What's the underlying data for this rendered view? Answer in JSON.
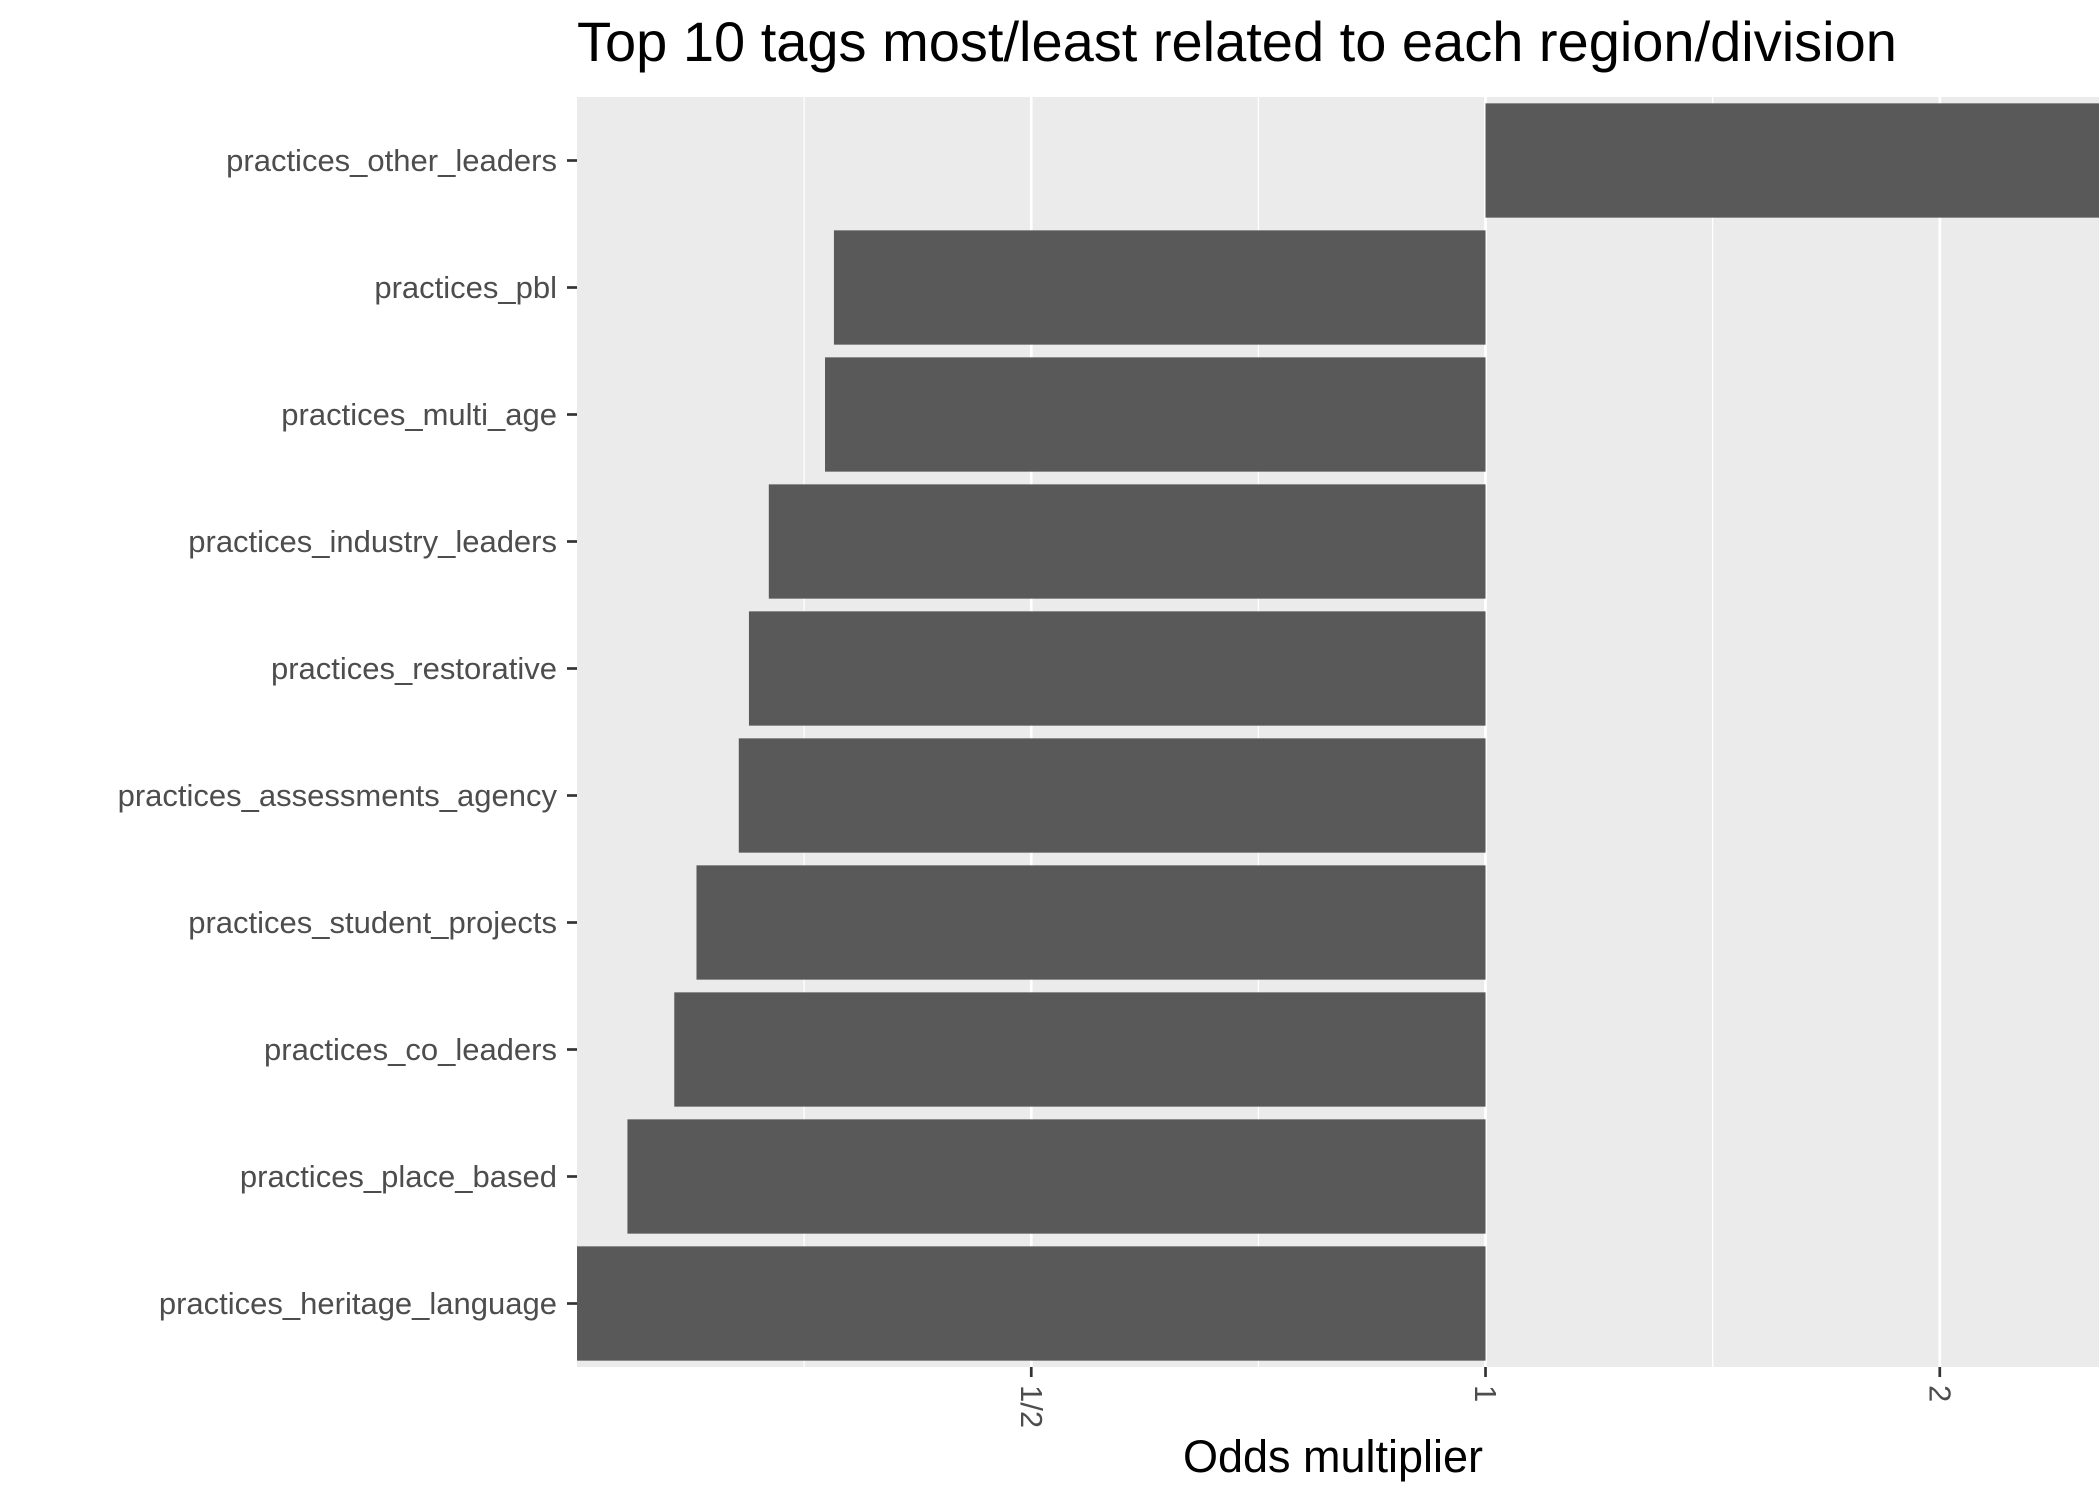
{
  "chart_data": {
    "type": "bar",
    "orientation": "horizontal",
    "title": "Top 10 tags most/least related to each region/division",
    "xlabel": "Odds multiplier",
    "ylabel": "",
    "x_scale": "log2",
    "x_ticks": [
      {
        "value": 0.5,
        "label": "1/2"
      },
      {
        "value": 1,
        "label": "1"
      },
      {
        "value": 2,
        "label": "2"
      }
    ],
    "xlim": [
      0.25,
      2.55
    ],
    "baseline": 1,
    "grid": true,
    "legend": "none",
    "categories": [
      "practices_other_leaders",
      "practices_pbl",
      "practices_multi_age",
      "practices_industry_leaders",
      "practices_restorative",
      "practices_assessments_agency",
      "practices_student_projects",
      "practices_co_leaders",
      "practices_place_based",
      "practices_heritage_language"
    ],
    "values": [
      2.55,
      0.37,
      0.365,
      0.335,
      0.325,
      0.32,
      0.3,
      0.29,
      0.27,
      0.25
    ],
    "colors": {
      "bar": "#595959",
      "panel": "#ebebeb",
      "grid": "#ffffff",
      "axis_text": "#4d4d4d",
      "tick": "#333333"
    }
  }
}
